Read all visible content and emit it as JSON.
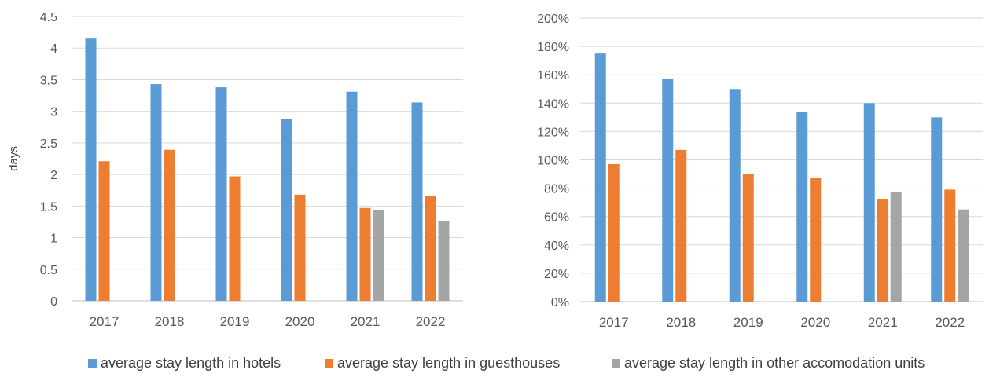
{
  "chart_data": [
    {
      "type": "bar",
      "categories": [
        "2017",
        "2018",
        "2019",
        "2020",
        "2021",
        "2022"
      ],
      "ylabel": "days",
      "ylim": [
        0,
        4.5
      ],
      "yticks": [
        "0",
        "0.5",
        "1",
        "1.5",
        "2",
        "2.5",
        "3",
        "3.5",
        "4",
        "4.5"
      ],
      "grid": true,
      "series": [
        {
          "name": "average stay length in hotels",
          "color": "#5b9bd5",
          "values": [
            4.15,
            3.43,
            3.38,
            2.88,
            3.31,
            3.14
          ]
        },
        {
          "name": "average stay length in guesthouses",
          "color": "#ed7d31",
          "values": [
            2.21,
            2.39,
            1.97,
            1.68,
            1.47,
            1.66
          ]
        },
        {
          "name": "average stay length in other accomodation units",
          "color": "#a5a5a5",
          "values": [
            null,
            null,
            null,
            null,
            1.43,
            1.26
          ]
        }
      ]
    },
    {
      "type": "bar",
      "categories": [
        "2017",
        "2018",
        "2019",
        "2020",
        "2021",
        "2022"
      ],
      "ylim": [
        0,
        200
      ],
      "yticks": [
        "0%",
        "20%",
        "40%",
        "60%",
        "80%",
        "100%",
        "120%",
        "140%",
        "160%",
        "180%",
        "200%"
      ],
      "grid": true,
      "series": [
        {
          "name": "average stay length in hotels",
          "color": "#5b9bd5",
          "values": [
            175,
            157,
            150,
            134,
            140,
            130
          ]
        },
        {
          "name": "average stay length in guesthouses",
          "color": "#ed7d31",
          "values": [
            97,
            107,
            90,
            87,
            72,
            79
          ]
        },
        {
          "name": "average stay length in other accomodation units",
          "color": "#a5a5a5",
          "values": [
            null,
            null,
            null,
            null,
            77,
            65
          ]
        }
      ]
    }
  ],
  "legend": {
    "position": "bottom",
    "items": [
      {
        "label": "average stay length in hotels",
        "color": "#5b9bd5"
      },
      {
        "label": "average stay length in guesthouses",
        "color": "#ed7d31"
      },
      {
        "label": "average stay length in other accomodation units",
        "color": "#a5a5a5"
      }
    ]
  }
}
